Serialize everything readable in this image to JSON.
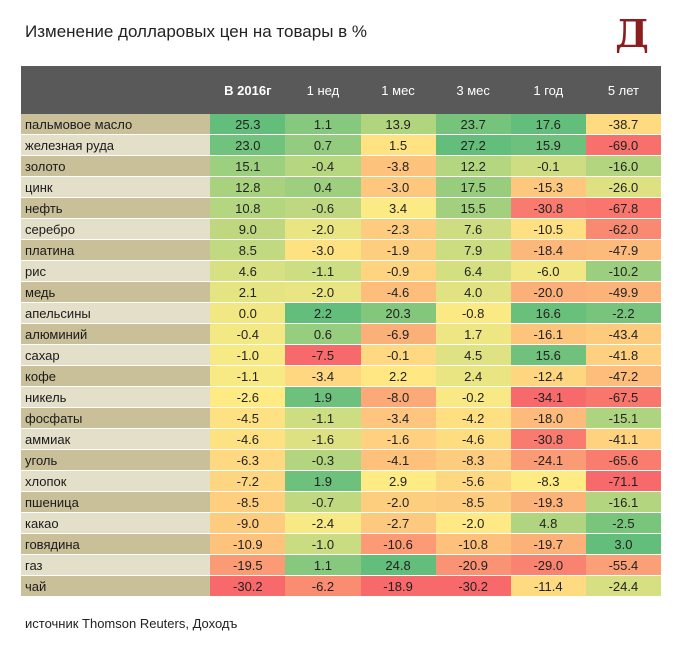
{
  "title": "Изменение долларовых цен на товары в %",
  "logo_text": "Д",
  "source": "источник Thomson Reuters, Доходъ",
  "colors": {
    "header_bg": "#595959",
    "row_name_dark": "#c9c09a",
    "row_name_light": "#e4dfc9",
    "scale_low": "#f8696b",
    "scale_mid": "#ffeb84",
    "scale_high": "#63be7b"
  },
  "chart_data": {
    "type": "table",
    "columns": [
      "",
      "В 2016г",
      "1 нед",
      "1 мес",
      "3 мес",
      "1 год",
      "5 лет"
    ],
    "rows": [
      {
        "name": "пальмовое масло",
        "values": [
          25.3,
          1.1,
          13.9,
          23.7,
          17.6,
          -38.7
        ]
      },
      {
        "name": "железная руда",
        "values": [
          23.0,
          0.7,
          1.5,
          27.2,
          15.9,
          -69.0
        ]
      },
      {
        "name": "золото",
        "values": [
          15.1,
          -0.4,
          -3.8,
          12.2,
          -0.1,
          -16.0
        ]
      },
      {
        "name": "цинк",
        "values": [
          12.8,
          0.4,
          -3.0,
          17.5,
          -15.3,
          -26.0
        ]
      },
      {
        "name": "нефть",
        "values": [
          10.8,
          -0.6,
          3.4,
          15.5,
          -30.8,
          -67.8
        ]
      },
      {
        "name": "серебро",
        "values": [
          9.0,
          -2.0,
          -2.3,
          7.6,
          -10.5,
          -62.0
        ]
      },
      {
        "name": "платина",
        "values": [
          8.5,
          -3.0,
          -1.9,
          7.9,
          -18.4,
          -47.9
        ]
      },
      {
        "name": "рис",
        "values": [
          4.6,
          -1.1,
          -0.9,
          6.4,
          -6.0,
          -10.2
        ]
      },
      {
        "name": "медь",
        "values": [
          2.1,
          -2.0,
          -4.6,
          4.0,
          -20.0,
          -49.9
        ]
      },
      {
        "name": "апельсины",
        "values": [
          0.0,
          2.2,
          20.3,
          -0.8,
          16.6,
          -2.2
        ]
      },
      {
        "name": "алюминий",
        "values": [
          -0.4,
          0.6,
          -6.9,
          1.7,
          -16.1,
          -43.4
        ]
      },
      {
        "name": "сахар",
        "values": [
          -1.0,
          -7.5,
          -0.1,
          4.5,
          15.6,
          -41.8
        ]
      },
      {
        "name": "кофе",
        "values": [
          -1.1,
          -3.4,
          2.2,
          2.4,
          -12.4,
          -47.2
        ]
      },
      {
        "name": "никель",
        "values": [
          -2.6,
          1.9,
          -8.0,
          -0.2,
          -34.1,
          -67.5
        ]
      },
      {
        "name": "фосфаты",
        "values": [
          -4.5,
          -1.1,
          -3.4,
          -4.2,
          -18.0,
          -15.1
        ]
      },
      {
        "name": "аммиак",
        "values": [
          -4.6,
          -1.6,
          -1.6,
          -4.6,
          -30.8,
          -41.1
        ]
      },
      {
        "name": "уголь",
        "values": [
          -6.3,
          -0.3,
          -4.1,
          -8.3,
          -24.1,
          -65.6
        ]
      },
      {
        "name": "хлопок",
        "values": [
          -7.2,
          1.9,
          2.9,
          -5.6,
          -8.3,
          -71.1
        ]
      },
      {
        "name": "пшеница",
        "values": [
          -8.5,
          -0.7,
          -2.0,
          -8.5,
          -19.3,
          -16.1
        ]
      },
      {
        "name": "какао",
        "values": [
          -9.0,
          -2.4,
          -2.7,
          -2.0,
          4.8,
          -2.5
        ]
      },
      {
        "name": "говядина",
        "values": [
          -10.9,
          -1.0,
          -10.6,
          -10.8,
          -19.7,
          3.0
        ]
      },
      {
        "name": "газ",
        "values": [
          -19.5,
          1.1,
          24.8,
          -20.9,
          -29.0,
          -55.4
        ]
      },
      {
        "name": "чай",
        "values": [
          -30.2,
          -6.2,
          -18.9,
          -30.2,
          -11.4,
          -24.4
        ]
      }
    ]
  }
}
